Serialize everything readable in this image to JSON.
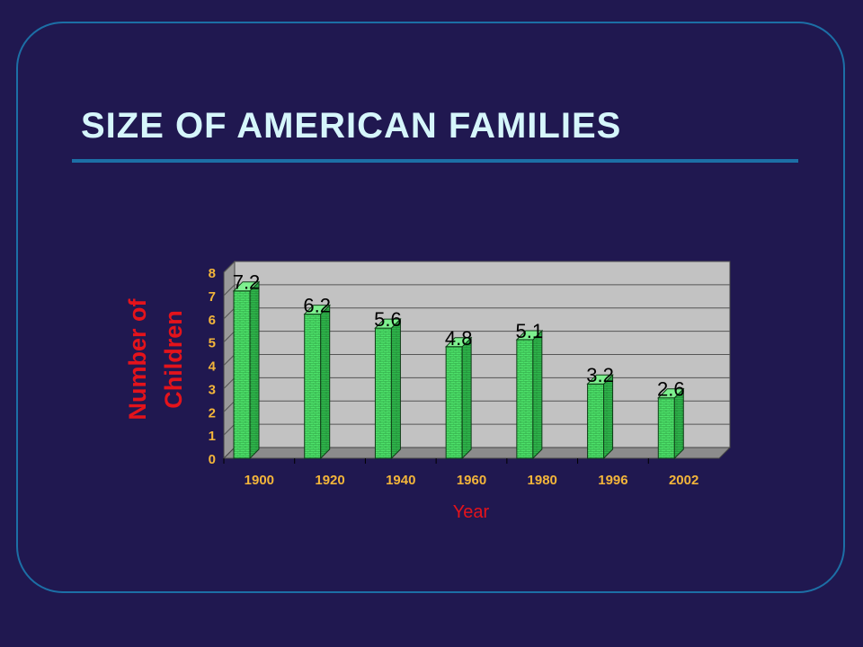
{
  "slide": {
    "title": "SIZE OF AMERICAN FAMILIES"
  },
  "colors": {
    "background": "#201850",
    "title": "#d6f6fb",
    "accent_line": "#1c6fa6",
    "axis_text": "#f3b53a",
    "axis_label": "#e4131b",
    "bar": "#4ee36b",
    "plot_bg": "#c2c2c2"
  },
  "chart_data": {
    "type": "bar",
    "title": "",
    "xlabel": "Year",
    "ylabel": "Number of Children",
    "ylabel_lines": [
      "Number of",
      "Children"
    ],
    "categories": [
      "1900",
      "1920",
      "1940",
      "1960",
      "1980",
      "1996",
      "2002"
    ],
    "values": [
      7.2,
      6.2,
      5.6,
      4.8,
      5.1,
      3.2,
      2.6
    ],
    "data_labels": [
      "7.2",
      "6.2",
      "5.6",
      "4.8",
      "5.1",
      "3.2",
      "2.6"
    ],
    "ylim": [
      0,
      8
    ],
    "yticks": [
      "0",
      "1",
      "2",
      "3",
      "4",
      "5",
      "6",
      "7",
      "8"
    ],
    "grid": true,
    "legend": "none",
    "style": "3d"
  }
}
